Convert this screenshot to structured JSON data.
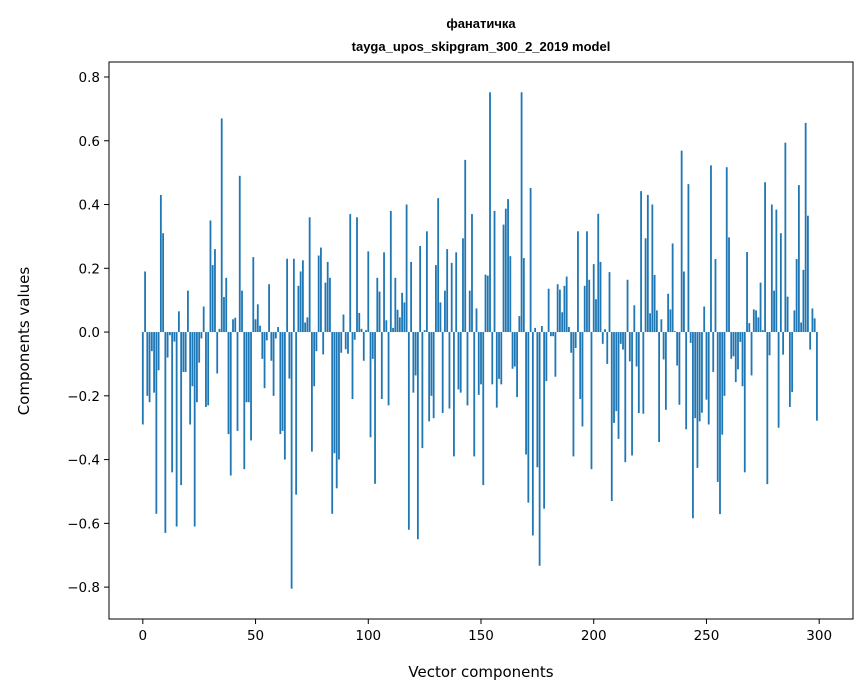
{
  "chart_data": {
    "type": "bar",
    "title_line1": "фанатичка",
    "title_line2": "tayga_upos_skipgram_300_2_2019 model",
    "xlabel": "Vector components",
    "ylabel": "Components values",
    "xlim": [
      -15,
      315
    ],
    "ylim": [
      -0.9,
      0.847
    ],
    "xticks": [
      0,
      50,
      100,
      150,
      200,
      250,
      300
    ],
    "xtick_labels": [
      "0",
      "50",
      "100",
      "150",
      "200",
      "250",
      "300"
    ],
    "yticks": [
      -0.8,
      -0.6,
      -0.4,
      -0.2,
      0.0,
      0.2,
      0.4,
      0.6,
      0.8
    ],
    "ytick_labels": [
      "−0.8",
      "−0.6",
      "−0.4",
      "−0.2",
      "0.0",
      "0.2",
      "0.4",
      "0.6",
      "0.8"
    ],
    "grid": false,
    "bar_color": "#1f77b4",
    "values": [
      -0.29,
      0.19,
      -0.2,
      -0.22,
      -0.06,
      -0.19,
      -0.57,
      -0.12,
      0.43,
      0.31,
      -0.63,
      -0.08,
      -0.01,
      -0.44,
      -0.03,
      -0.61,
      0.065,
      -0.48,
      -0.125,
      -0.125,
      0.13,
      -0.29,
      -0.17,
      -0.61,
      -0.22,
      -0.096,
      -0.02,
      0.08,
      -0.235,
      -0.23,
      0.35,
      0.21,
      0.26,
      -0.13,
      0.01,
      0.67,
      0.11,
      0.17,
      -0.32,
      -0.45,
      0.04,
      0.045,
      -0.31,
      0.49,
      0.13,
      -0.43,
      -0.22,
      -0.22,
      -0.34,
      0.235,
      0.04,
      0.087,
      0.02,
      -0.084,
      -0.176,
      -0.026,
      0.15,
      -0.09,
      -0.2,
      -0.02,
      0.016,
      -0.32,
      -0.31,
      -0.4,
      0.23,
      -0.146,
      -0.805,
      0.23,
      -0.51,
      0.145,
      0.19,
      0.225,
      0.03,
      0.046,
      0.36,
      -0.375,
      -0.17,
      -0.06,
      0.24,
      0.265,
      -0.07,
      0.155,
      0.22,
      0.17,
      -0.57,
      -0.38,
      -0.49,
      -0.4,
      -0.065,
      0.055,
      -0.054,
      -0.068,
      0.37,
      -0.21,
      -0.024,
      0.36,
      0.06,
      0.01,
      -0.09,
      0.006,
      0.253,
      -0.33,
      -0.084,
      -0.476,
      0.17,
      0.127,
      -0.21,
      0.25,
      0.037,
      -0.23,
      0.38,
      0.013,
      0.17,
      0.07,
      0.046,
      0.123,
      0.093,
      0.4,
      -0.62,
      0.22,
      -0.19,
      -0.136,
      -0.65,
      0.27,
      -0.364,
      0.006,
      0.316,
      -0.28,
      -0.2,
      -0.27,
      0.21,
      0.42,
      0.093,
      -0.254,
      0.13,
      0.26,
      -0.24,
      0.217,
      -0.39,
      0.25,
      -0.18,
      -0.19,
      0.294,
      0.54,
      -0.23,
      0.13,
      0.37,
      -0.39,
      0.074,
      -0.197,
      -0.164,
      -0.48,
      0.18,
      0.177,
      0.752,
      -0.164,
      0.38,
      -0.237,
      -0.147,
      -0.164,
      0.337,
      0.387,
      0.417,
      0.238,
      -0.115,
      -0.108,
      -0.204,
      0.05,
      0.752,
      0.232,
      -0.384,
      -0.535,
      0.452,
      -0.638,
      0.013,
      -0.424,
      -0.733,
      0.019,
      -0.554,
      -0.154,
      0.136,
      -0.013,
      -0.013,
      -0.14,
      0.15,
      0.133,
      0.062,
      0.145,
      0.174,
      0.016,
      -0.065,
      -0.39,
      -0.05,
      0.316,
      -0.21,
      -0.296,
      0.145,
      0.316,
      0.164,
      -0.43,
      0.213,
      0.103,
      0.371,
      0.22,
      -0.037,
      0.009,
      -0.1,
      0.188,
      -0.53,
      -0.285,
      -0.248,
      -0.335,
      -0.037,
      -0.055,
      -0.408,
      0.164,
      -0.092,
      -0.387,
      0.084,
      -0.108,
      -0.254,
      0.442,
      -0.256,
      0.294,
      0.43,
      0.059,
      0.4,
      0.179,
      0.068,
      -0.345,
      0.04,
      -0.086,
      -0.244,
      0.12,
      0.071,
      0.278,
      0.003,
      -0.105,
      -0.228,
      0.569,
      0.19,
      -0.305,
      0.464,
      -0.034,
      -0.584,
      -0.27,
      -0.426,
      -0.28,
      -0.253,
      0.08,
      -0.212,
      -0.29,
      0.523,
      -0.125,
      0.229,
      -0.47,
      -0.571,
      -0.322,
      -0.2,
      0.517,
      0.297,
      -0.084,
      -0.076,
      -0.157,
      -0.117,
      -0.031,
      -0.17,
      -0.44,
      0.251,
      0.028,
      -0.136,
      0.071,
      0.068,
      0.046,
      0.155,
      0.006,
      0.47,
      -0.477,
      -0.073,
      0.4,
      0.13,
      0.384,
      -0.3,
      0.31,
      -0.071,
      0.594,
      0.111,
      -0.235,
      -0.188,
      0.068,
      0.229,
      0.461,
      0.03,
      0.195,
      0.656,
      0.365,
      -0.055,
      0.074,
      0.043,
      -0.278
    ]
  }
}
